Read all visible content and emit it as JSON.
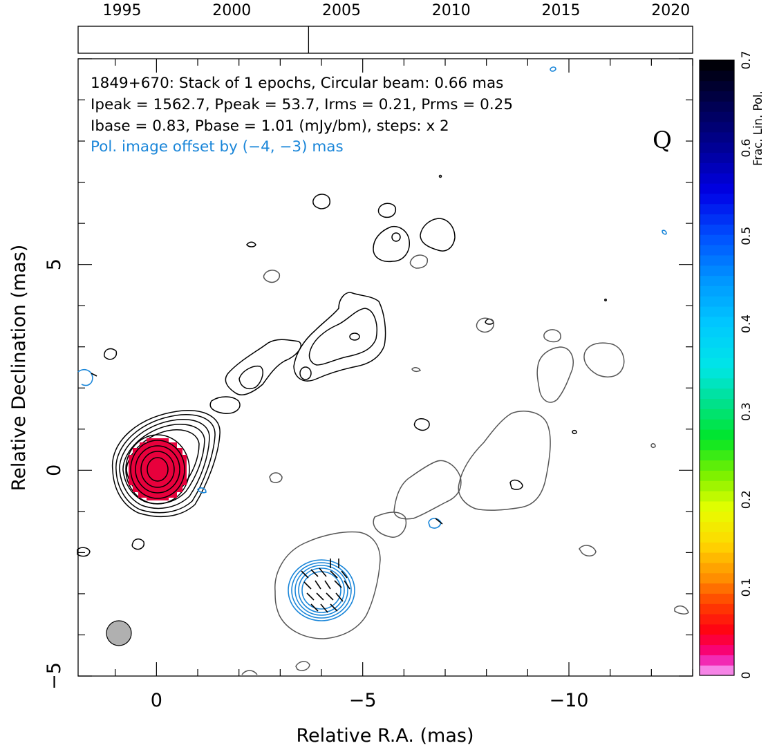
{
  "colors": {
    "contour_total": "#000000",
    "contour_gray": "#555555",
    "contour_pol": "#1a86d9",
    "beam_fill": "#b0b0b0",
    "core_fill": "#e8003c",
    "core_edge": "#d40070"
  },
  "timeline": {
    "ticks": [
      "1995",
      "2000",
      "2005",
      "2010",
      "2015",
      "2020"
    ],
    "range": [
      1993,
      2021
    ],
    "epochs": [
      2003.5
    ]
  },
  "header": {
    "line1": "1849+670: Stack of 1 epochs, Circular beam: 0.66 mas",
    "line2": "Ipeak = 1562.7, Ppeak = 53.7, Irms = 0.21, Prms = 0.25",
    "line3": "Ibase = 0.83, Pbase = 1.01 (mJy/bm), steps: x 2",
    "line4": "Pol. image offset by (−4, −3) mas",
    "quality_mark": "Q"
  },
  "chart_data": {
    "type": "contour",
    "xlabel": "Relative R.A. (mas)",
    "ylabel": "Relative Declination (mas)",
    "xlim": [
      1.9,
      -13
    ],
    "ylim": [
      -5,
      10
    ],
    "xticks": [
      {
        "v": 0,
        "t": "0"
      },
      {
        "v": -5,
        "t": "−5"
      },
      {
        "v": -10,
        "t": "−10"
      }
    ],
    "yticks": [
      {
        "v": 5,
        "t": "5"
      },
      {
        "v": 0,
        "t": "0"
      },
      {
        "v": -5,
        "t": "−5"
      }
    ],
    "beam_fwhm_mas": 0.66,
    "core_position": [
      0,
      0
    ],
    "pol_image_offset": [
      -4,
      -3
    ],
    "contour_step_factor": 2,
    "colorbar": {
      "label": "Frac. Lin. Pol.",
      "range": [
        0,
        0.7
      ],
      "ticks": [
        "0",
        "0.1",
        "0.2",
        "0.3",
        "0.4",
        "0.5",
        "0.6",
        "0.7"
      ]
    }
  }
}
